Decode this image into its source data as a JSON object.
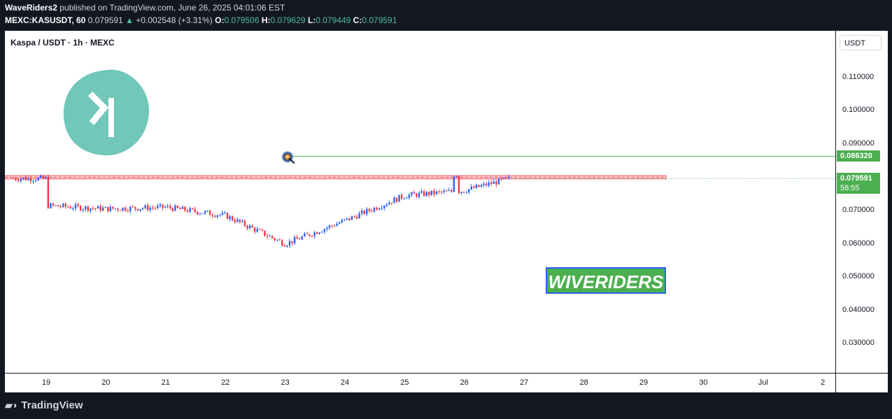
{
  "header": {
    "author": "WaveRiders2",
    "published": "published on TradingView.com, June 26, 2025 04:01:06 EST",
    "symbol": "MEXC:KASUSDT, 60",
    "last": "0.079591",
    "change_arrow": "▲",
    "change": "+0.002548 (+3.31%)",
    "o_label": "O:",
    "o": "0.079506",
    "h_label": "H:",
    "h": "0.079629",
    "l_label": "L:",
    "l": "0.079449",
    "c_label": "C:",
    "c": "0.079591"
  },
  "legend_title": "Kaspa / USDT · 1h · MEXC",
  "currency": "USDT",
  "y_ticks": [
    "0.110000",
    "0.100000",
    "0.090000",
    "0.070000",
    "0.060000",
    "0.050000",
    "0.040000",
    "0.030000"
  ],
  "x_ticks": [
    "19",
    "20",
    "21",
    "22",
    "23",
    "24",
    "25",
    "26",
    "27",
    "28",
    "29",
    "30",
    "Jul",
    "2"
  ],
  "price_labels": {
    "target": "0.086320",
    "current": "0.079591",
    "countdown": "58:55"
  },
  "badge": "WIVERIDERS",
  "footer": "TradingView",
  "colors": {
    "up": "#2962ff",
    "down": "#f23645",
    "target_line": "#4caf50",
    "resistance_zone": "#f7a1a8",
    "logo": "#70c7ba"
  },
  "chart_data": {
    "type": "candlestick",
    "title": "Kaspa / USDT · 1h · MEXC",
    "ylim": [
      0.02,
      0.118
    ],
    "x": [
      "19",
      "20",
      "21",
      "22",
      "23",
      "24",
      "25",
      "26",
      "26.75"
    ],
    "series": [
      {
        "values": [
          0.0715,
          0.0705,
          0.071,
          0.0685,
          0.06,
          0.067,
          0.0745,
          0.076,
          0.0796
        ]
      }
    ],
    "annotations": {
      "resistance_zone": [
        0.0795,
        0.0805
      ],
      "target_level": 0.08632,
      "current_price": 0.079591
    }
  }
}
